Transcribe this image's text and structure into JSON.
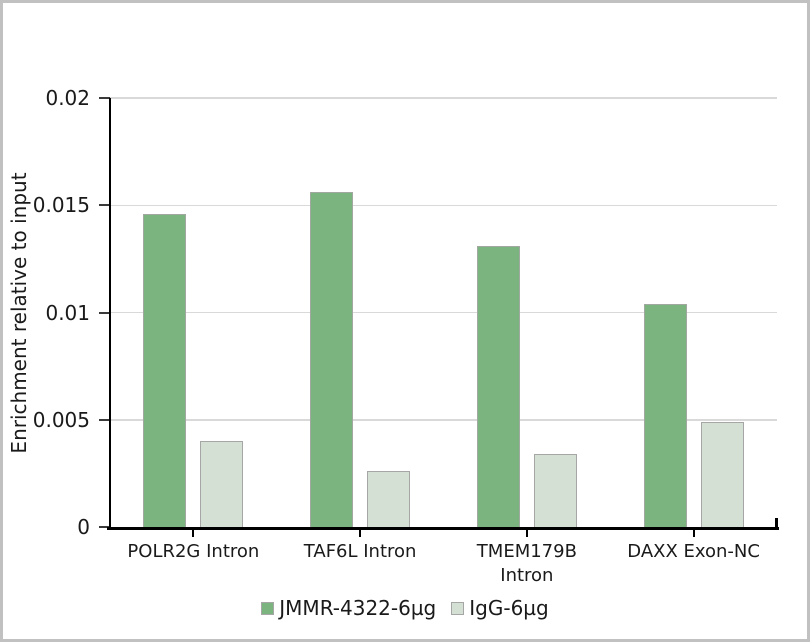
{
  "figure": {
    "background_color": "#ffffff",
    "border_color": "#c1c1c1"
  },
  "chart_data": {
    "type": "bar",
    "ylabel": "Enrichment relative to input",
    "xlabel": "",
    "ylim": [
      0,
      0.02
    ],
    "grid": true,
    "gridline_color": "#d9d9d9",
    "axis_color": "#000000",
    "text_color": "#1a1a1a",
    "legend_position": "bottom",
    "yticks": [
      {
        "value": 0,
        "label": "0"
      },
      {
        "value": 0.005,
        "label": "0.005"
      },
      {
        "value": 0.01,
        "label": "0.01"
      },
      {
        "value": 0.015,
        "label": "0.015"
      },
      {
        "value": 0.02,
        "label": "0.02"
      }
    ],
    "categories": [
      "POLR2G Intron",
      "TAF6L Intron",
      "TMEM179B\nIntron",
      "DAXX Exon-NC"
    ],
    "series": [
      {
        "name": "JMMR-4322-6µg",
        "fill": "#7cb480",
        "border": "#a0a8a0",
        "values": [
          0.0146,
          0.0156,
          0.0131,
          0.0104
        ]
      },
      {
        "name": "IgG-6µg",
        "fill": "#d3e0d3",
        "border": "#a6a6a6",
        "values": [
          0.004,
          0.0026,
          0.0034,
          0.0049
        ]
      }
    ]
  }
}
